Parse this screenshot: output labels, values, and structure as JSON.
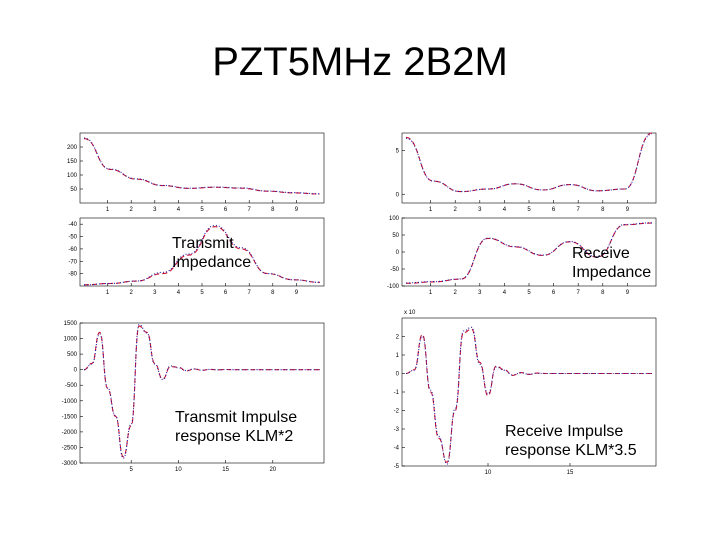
{
  "slide": {
    "title": "PZT5MHz 2B2M"
  },
  "captions": {
    "transmit_impedance_line1": "Transmit",
    "transmit_impedance_line2": "Impedance",
    "receive_impedance_line1": "Receive",
    "receive_impedance_line2": "Impedance",
    "transmit_impulse_line1": "Transmit Impulse",
    "transmit_impulse_line2": "response KLM*2",
    "receive_impulse_line1": "Receive  Impulse",
    "receive_impulse_line2": "response KLM*3.5"
  },
  "colors": {
    "series_dashed": "#cc1133",
    "series_dotted": "#2222aa",
    "axes": "#000000"
  },
  "chart_data": [
    {
      "id": "transmit-impedance-magnitude",
      "type": "line",
      "x": [
        1,
        2,
        3,
        4,
        5,
        6,
        7,
        8,
        9,
        10
      ],
      "xticks": [
        "1",
        "2",
        "3",
        "4",
        "5",
        "6",
        "7",
        "8",
        "9"
      ],
      "yticks": [
        "50",
        "100",
        "150",
        "200"
      ],
      "ylim": [
        0,
        250
      ],
      "series": [
        {
          "values": [
            230,
            120,
            85,
            62,
            52,
            56,
            53,
            42,
            36,
            32
          ]
        },
        {
          "values": [
            232,
            121,
            86,
            63,
            53,
            57,
            54,
            43,
            37,
            33
          ]
        }
      ]
    },
    {
      "id": "transmit-impedance-phase",
      "type": "line",
      "x": [
        1,
        2,
        3,
        4,
        5,
        6,
        7,
        8,
        9,
        10
      ],
      "xticks": [
        "1",
        "2",
        "3",
        "4",
        "5",
        "6",
        "7",
        "8",
        "9"
      ],
      "yticks": [
        "-80",
        "-70",
        "-60",
        "-50",
        "-40"
      ],
      "ylim": [
        -90,
        -35
      ],
      "series": [
        {
          "values": [
            -89,
            -88,
            -86,
            -80,
            -65,
            -42,
            -60,
            -80,
            -85,
            -87
          ]
        },
        {
          "values": [
            -89,
            -88,
            -86,
            -79,
            -64,
            -41,
            -59,
            -80,
            -85,
            -87
          ]
        }
      ]
    },
    {
      "id": "receive-impedance-magnitude",
      "type": "line",
      "x": [
        1,
        2,
        3,
        4,
        5,
        6,
        7,
        8,
        9,
        10
      ],
      "xticks": [
        "1",
        "2",
        "3",
        "4",
        "5",
        "6",
        "7",
        "8",
        "9"
      ],
      "yticks": [
        "0",
        "5"
      ],
      "ylim": [
        -1,
        7
      ],
      "series": [
        {
          "values": [
            6.5,
            1.5,
            0.3,
            0.6,
            1.2,
            0.5,
            1.1,
            0.4,
            0.6,
            7
          ]
        },
        {
          "values": [
            6.4,
            1.5,
            0.3,
            0.6,
            1.2,
            0.5,
            1.1,
            0.4,
            0.6,
            6.9
          ]
        }
      ]
    },
    {
      "id": "receive-impedance-phase",
      "type": "line",
      "x": [
        1,
        2,
        3,
        4,
        5,
        6,
        7,
        8,
        9,
        10
      ],
      "xticks": [
        "1",
        "2",
        "3",
        "4",
        "5",
        "6",
        "7",
        "8",
        "9"
      ],
      "yticks": [
        "-100",
        "-50",
        "0",
        "50",
        "100"
      ],
      "ylim": [
        -100,
        100
      ],
      "series": [
        {
          "values": [
            -92,
            -88,
            -80,
            40,
            15,
            -10,
            30,
            -15,
            80,
            85
          ]
        },
        {
          "values": [
            -91,
            -87,
            -79,
            41,
            16,
            -9,
            31,
            -14,
            81,
            86
          ]
        }
      ]
    },
    {
      "id": "transmit-impulse-response",
      "type": "line",
      "x": [
        0,
        1,
        2,
        3,
        4,
        5,
        6,
        7,
        8,
        9,
        10,
        11,
        12,
        13,
        14,
        15,
        16,
        17,
        18,
        19,
        20,
        21,
        22,
        23,
        24,
        25,
        26,
        27,
        28,
        29,
        30
      ],
      "xticks": [
        "5",
        "10",
        "15",
        "20"
      ],
      "yticks": [
        "-3000",
        "-2500",
        "-2000",
        "-1500",
        "-1000",
        "-500",
        "0",
        "500",
        "1000",
        "1500"
      ],
      "ylim": [
        -3000,
        1500
      ],
      "series": [
        {
          "values": [
            0,
            200,
            1200,
            -600,
            -1500,
            -2800,
            -1800,
            1400,
            1200,
            200,
            -300,
            100,
            80,
            -40,
            20,
            -20,
            10,
            -5,
            5,
            0,
            0,
            0,
            0,
            0,
            0,
            0,
            0,
            0,
            0,
            0,
            0
          ]
        },
        {
          "values": [
            0,
            180,
            1150,
            -580,
            -1480,
            -2850,
            -1750,
            1450,
            1180,
            180,
            -320,
            120,
            60,
            -30,
            25,
            -15,
            8,
            -4,
            4,
            0,
            0,
            0,
            0,
            0,
            0,
            0,
            0,
            0,
            0,
            0,
            0
          ]
        }
      ]
    },
    {
      "id": "receive-impulse-response",
      "type": "line",
      "x": [
        0,
        1,
        2,
        3,
        4,
        5,
        6,
        7,
        8,
        9,
        10,
        11,
        12,
        13,
        14,
        15,
        16,
        17,
        18,
        19,
        20,
        21,
        22,
        23,
        24,
        25,
        26,
        27,
        28,
        29,
        30
      ],
      "xticks": [
        "10",
        "15"
      ],
      "ylabel_exponent": "x 10",
      "yticks": [
        "-5",
        "-4",
        "-3",
        "-2",
        "-1",
        "0",
        "1",
        "2"
      ],
      "ylim": [
        -5,
        3
      ],
      "series": [
        {
          "values": [
            0,
            0.2,
            2.1,
            -1,
            -3.5,
            -4.8,
            -2,
            2.2,
            2.4,
            0.6,
            -1.2,
            0.4,
            0.2,
            -0.1,
            0.05,
            -0.05,
            0.02,
            0,
            0,
            0,
            0,
            0,
            0,
            0,
            0,
            0,
            0,
            0,
            0,
            0,
            0
          ]
        },
        {
          "values": [
            0,
            0.18,
            2.0,
            -0.9,
            -3.4,
            -4.9,
            -1.9,
            2.3,
            2.5,
            0.5,
            -1.1,
            0.35,
            0.18,
            -0.08,
            0.04,
            -0.04,
            0.01,
            0,
            0,
            0,
            0,
            0,
            0,
            0,
            0,
            0,
            0,
            0,
            0,
            0,
            0
          ]
        }
      ]
    }
  ]
}
